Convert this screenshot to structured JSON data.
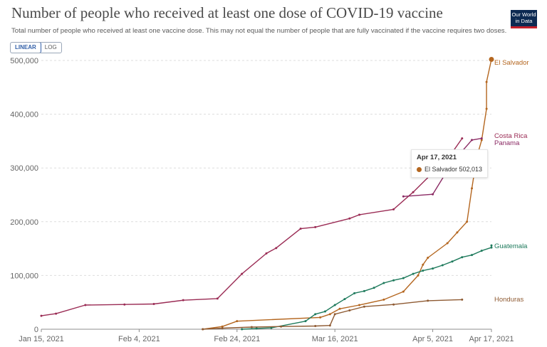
{
  "header": {
    "title": "Number of people who received at least one dose of COVID-19 vaccine",
    "subtitle": "Total number of people who received at least one vaccine dose. This may not equal the number of people that are fully vaccinated if the vaccine requires two doses.",
    "logo_line1": "Our World",
    "logo_line2": "in Data"
  },
  "scale_toggle": {
    "linear_label": "LINEAR",
    "log_label": "LOG",
    "selected": "LINEAR"
  },
  "tooltip": {
    "date": "Apr 17, 2021",
    "country": "El Salvador",
    "value": "502,013"
  },
  "chart_data": {
    "type": "line",
    "x_type": "date",
    "xlim": [
      "2021-01-15",
      "2021-04-17"
    ],
    "ylim": [
      0,
      500000
    ],
    "y_ticks": [
      0,
      100000,
      200000,
      300000,
      400000,
      500000
    ],
    "y_tick_labels": [
      "0",
      "100,000",
      "200,000",
      "300,000",
      "400,000",
      "500,000"
    ],
    "x_ticks": [
      "2021-01-15",
      "2021-02-04",
      "2021-02-24",
      "2021-03-16",
      "2021-04-05",
      "2021-04-17"
    ],
    "x_tick_labels": [
      "Jan 15, 2021",
      "Feb 4, 2021",
      "Feb 24, 2021",
      "Mar 16, 2021",
      "Apr 5, 2021",
      "Apr 17, 2021"
    ],
    "grid": "horizontal dashed",
    "legend": "right-side labels",
    "series": [
      {
        "name": "El Salvador",
        "color": "#b4661f",
        "points": [
          [
            "2021-02-17",
            0
          ],
          [
            "2021-02-21",
            5000
          ],
          [
            "2021-02-24",
            15000
          ],
          [
            "2021-03-13",
            22000
          ],
          [
            "2021-03-15",
            28000
          ],
          [
            "2021-03-17",
            38000
          ],
          [
            "2021-03-21",
            45000
          ],
          [
            "2021-03-26",
            55000
          ],
          [
            "2021-03-30",
            70000
          ],
          [
            "2021-04-02",
            100000
          ],
          [
            "2021-04-03",
            120000
          ],
          [
            "2021-04-04",
            133000
          ],
          [
            "2021-04-08",
            160000
          ],
          [
            "2021-04-10",
            180000
          ],
          [
            "2021-04-12",
            200000
          ],
          [
            "2021-04-13",
            262000
          ],
          [
            "2021-04-14",
            320000
          ],
          [
            "2021-04-15",
            352000
          ],
          [
            "2021-04-16",
            410000
          ],
          [
            "2021-04-16",
            460000
          ],
          [
            "2021-04-17",
            502013
          ]
        ]
      },
      {
        "name": "Costa Rica",
        "color": "#9a2b54",
        "points": [
          [
            "2021-01-15",
            25000
          ],
          [
            "2021-01-18",
            29000
          ],
          [
            "2021-01-24",
            45000
          ],
          [
            "2021-02-01",
            46000
          ],
          [
            "2021-02-07",
            47000
          ],
          [
            "2021-02-13",
            54000
          ],
          [
            "2021-02-20",
            57000
          ],
          [
            "2021-02-25",
            103000
          ],
          [
            "2021-03-02",
            141000
          ],
          [
            "2021-03-04",
            151000
          ],
          [
            "2021-03-09",
            187000
          ],
          [
            "2021-03-12",
            190000
          ],
          [
            "2021-03-19",
            206000
          ],
          [
            "2021-03-21",
            213000
          ],
          [
            "2021-03-28",
            223000
          ],
          [
            "2021-04-01",
            255000
          ],
          [
            "2021-04-05",
            291000
          ],
          [
            "2021-04-08",
            316000
          ],
          [
            "2021-04-11",
            355000
          ]
        ]
      },
      {
        "name": "Panama",
        "color": "#8b2a64",
        "points": [
          [
            "2021-03-30",
            247000
          ],
          [
            "2021-04-05",
            251000
          ],
          [
            "2021-04-09",
            310000
          ],
          [
            "2021-04-13",
            352000
          ],
          [
            "2021-04-15",
            355000
          ]
        ]
      },
      {
        "name": "Guatemala",
        "color": "#1e7a5c",
        "points": [
          [
            "2021-02-25",
            0
          ],
          [
            "2021-02-28",
            1500
          ],
          [
            "2021-03-03",
            2500
          ],
          [
            "2021-03-10",
            15000
          ],
          [
            "2021-03-12",
            28000
          ],
          [
            "2021-03-14",
            33000
          ],
          [
            "2021-03-16",
            45000
          ],
          [
            "2021-03-18",
            56000
          ],
          [
            "2021-03-20",
            67000
          ],
          [
            "2021-03-22",
            71000
          ],
          [
            "2021-03-24",
            77000
          ],
          [
            "2021-03-26",
            86000
          ],
          [
            "2021-03-28",
            91000
          ],
          [
            "2021-03-30",
            95000
          ],
          [
            "2021-04-01",
            103000
          ],
          [
            "2021-04-03",
            109000
          ],
          [
            "2021-04-05",
            113000
          ],
          [
            "2021-04-07",
            119000
          ],
          [
            "2021-04-09",
            126000
          ],
          [
            "2021-04-11",
            134000
          ],
          [
            "2021-04-13",
            138000
          ],
          [
            "2021-04-15",
            146000
          ],
          [
            "2021-04-17",
            152000
          ],
          [
            "2021-04-17",
            156000
          ]
        ]
      },
      {
        "name": "Honduras",
        "color": "#8e5a32",
        "points": [
          [
            "2021-02-17",
            0
          ],
          [
            "2021-02-21",
            2000
          ],
          [
            "2021-02-27",
            4000
          ],
          [
            "2021-03-05",
            5000
          ],
          [
            "2021-03-12",
            6000
          ],
          [
            "2021-03-15",
            7000
          ],
          [
            "2021-03-16",
            28000
          ],
          [
            "2021-03-19",
            35000
          ],
          [
            "2021-03-22",
            42000
          ],
          [
            "2021-03-28",
            46000
          ],
          [
            "2021-04-04",
            53000
          ],
          [
            "2021-04-11",
            55000
          ]
        ]
      }
    ]
  }
}
